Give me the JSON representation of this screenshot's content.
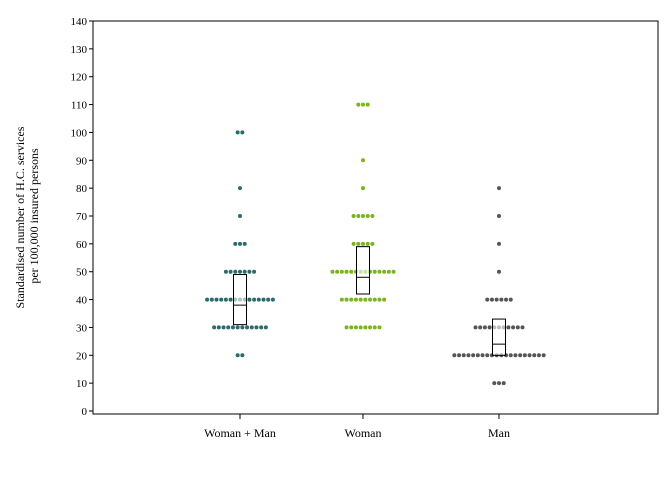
{
  "chart_data": {
    "type": "scatter",
    "subtype": "beeswarm-dot-plot-with-boxes",
    "title": "",
    "xlabel": "",
    "ylabel_lines": [
      "Standardised number of H.C. services",
      "per 100,000 insured persons"
    ],
    "ylim": [
      0,
      140
    ],
    "yticks": [
      0,
      10,
      20,
      30,
      40,
      50,
      60,
      70,
      80,
      90,
      100,
      110,
      120,
      130,
      140
    ],
    "grid": false,
    "categories": [
      "Woman + Man",
      "Woman",
      "Man"
    ],
    "series": [
      {
        "category": "Woman + Man",
        "color": "#2a6b6b",
        "points": [
          {
            "y": 100,
            "n": 2
          },
          {
            "y": 80,
            "n": 1
          },
          {
            "y": 70,
            "n": 1
          },
          {
            "y": 60,
            "n": 3
          },
          {
            "y": 50,
            "n": 7
          },
          {
            "y": 40,
            "n": 15
          },
          {
            "y": 30,
            "n": 12
          },
          {
            "y": 20,
            "n": 2
          }
        ],
        "box": {
          "q1": 31,
          "median": 38,
          "q3": 49
        }
      },
      {
        "category": "Woman",
        "color": "#7ab51d",
        "points": [
          {
            "y": 110,
            "n": 3
          },
          {
            "y": 90,
            "n": 1
          },
          {
            "y": 80,
            "n": 1
          },
          {
            "y": 70,
            "n": 5
          },
          {
            "y": 60,
            "n": 5
          },
          {
            "y": 50,
            "n": 14
          },
          {
            "y": 40,
            "n": 10
          },
          {
            "y": 30,
            "n": 8
          }
        ],
        "box": {
          "q1": 42,
          "median": 48,
          "q3": 59
        }
      },
      {
        "category": "Man",
        "color": "#555555",
        "points": [
          {
            "y": 80,
            "n": 1
          },
          {
            "y": 70,
            "n": 1
          },
          {
            "y": 60,
            "n": 1
          },
          {
            "y": 50,
            "n": 1
          },
          {
            "y": 40,
            "n": 6
          },
          {
            "y": 30,
            "n": 11
          },
          {
            "y": 20,
            "n": 20
          },
          {
            "y": 10,
            "n": 3
          }
        ],
        "box": {
          "q1": 20,
          "median": 24,
          "q3": 33
        }
      }
    ]
  }
}
